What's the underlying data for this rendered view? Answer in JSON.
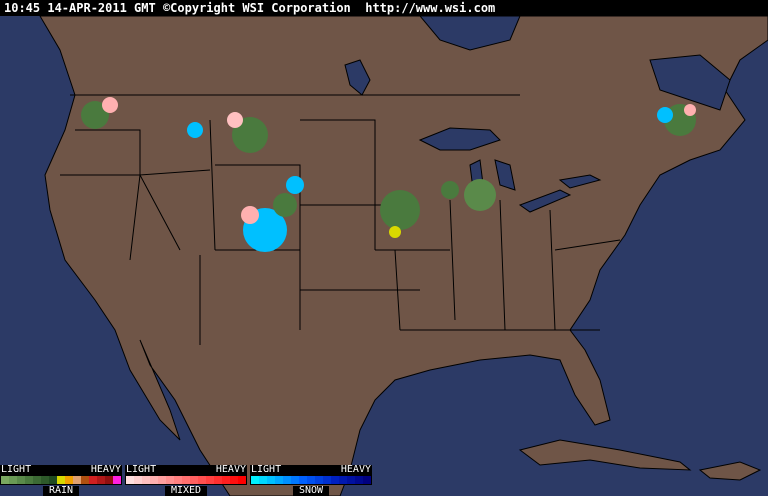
{
  "header": {
    "text": "10:45 14-APR-2011 GMT ©Copyright WSI Corporation  http://www.wsi.com"
  },
  "colors": {
    "ocean": "#2c3a66",
    "land": "#6f5547",
    "borders": "#000000"
  },
  "legend": [
    {
      "light": "LIGHT",
      "heavy": "HEAVY",
      "name": "RAIN",
      "colors": [
        "#7aa860",
        "#6a9a55",
        "#5a8a4a",
        "#4a7a3e",
        "#3c6a34",
        "#2e5a2a",
        "#1f4a20",
        "#d8d800",
        "#f0a000",
        "#e0a070",
        "#b05010",
        "#d02020",
        "#b01818",
        "#901010",
        "#ff20e0"
      ]
    },
    {
      "light": "LIGHT",
      "heavy": "HEAVY",
      "name": "MIXED",
      "colors": [
        "#ffe0e0",
        "#ffd0d0",
        "#ffc0c0",
        "#ffb0b0",
        "#ffa0a0",
        "#ff9090",
        "#ff8080",
        "#ff7070",
        "#ff6060",
        "#ff5050",
        "#ff4040",
        "#ff3030",
        "#ff2020",
        "#ff1010",
        "#ff0000"
      ]
    },
    {
      "light": "LIGHT",
      "heavy": "HEAVY",
      "name": "SNOW",
      "colors": [
        "#00f0ff",
        "#00d8ff",
        "#00c0ff",
        "#00a8ff",
        "#0090ff",
        "#0078ff",
        "#0060ff",
        "#0050f0",
        "#0040e0",
        "#0030d0",
        "#0020c0",
        "#0018b0",
        "#0010a0",
        "#000890",
        "#000080"
      ]
    }
  ]
}
